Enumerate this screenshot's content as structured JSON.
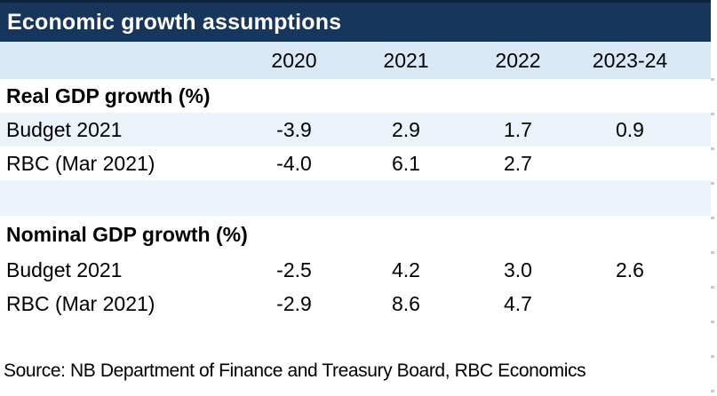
{
  "colors": {
    "header_navy": "#17365d",
    "header_navy_edge": "#0d2440",
    "column_header_blue": "#d9e8f6",
    "stripe_blue": "#ecf3fa",
    "title_text": "#ffffff",
    "body_text": "#000000"
  },
  "chart_data": {
    "type": "table",
    "title": "Economic growth assumptions",
    "columns": [
      "2020",
      "2021",
      "2022",
      "2023-24"
    ],
    "sections": [
      {
        "header": "Real GDP growth (%)",
        "rows": [
          {
            "label": "Budget 2021",
            "values": [
              "-3.9",
              "2.9",
              "1.7",
              "0.9"
            ]
          },
          {
            "label": "RBC (Mar 2021)",
            "values": [
              "-4.0",
              "6.1",
              "2.7",
              ""
            ]
          }
        ]
      },
      {
        "header": "Nominal GDP growth (%)",
        "rows": [
          {
            "label": "Budget 2021",
            "values": [
              "-2.5",
              "4.2",
              "3.0",
              "2.6"
            ]
          },
          {
            "label": "RBC (Mar 2021)",
            "values": [
              "-2.9",
              "8.6",
              "4.7",
              ""
            ]
          }
        ]
      }
    ],
    "source": "Source: NB Department of Finance and Treasury Board, RBC Economics"
  }
}
